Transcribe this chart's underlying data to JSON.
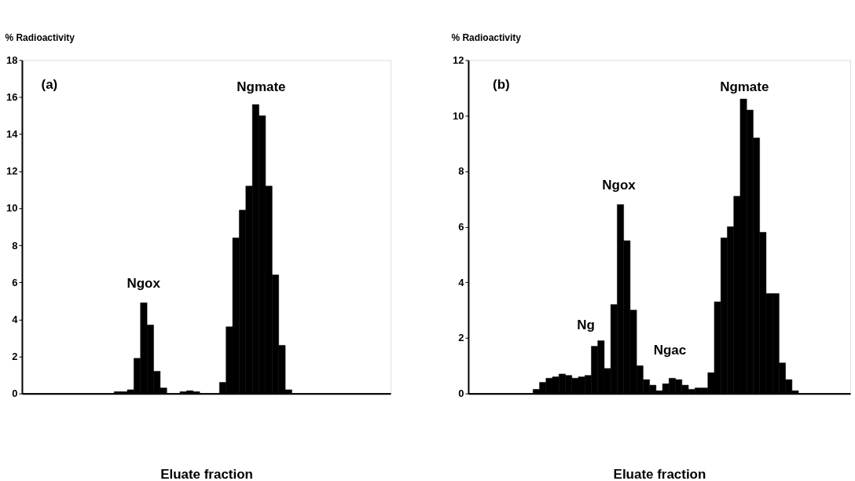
{
  "chart_data": [
    {
      "type": "bar",
      "xlabel": "Eluate fraction",
      "ylabel": "% Radioactivity",
      "annotations": [
        "(a)",
        "Ngox",
        "Ngmate"
      ],
      "categories": [
        null,
        null,
        null,
        null,
        null,
        null,
        null,
        null,
        null,
        null,
        null,
        null,
        null,
        null,
        null,
        null,
        null,
        null,
        null,
        null,
        null,
        null,
        null,
        null,
        null,
        null,
        null,
        null,
        null,
        null,
        null,
        null,
        null,
        null,
        null,
        null,
        null,
        null,
        null,
        null,
        null,
        null,
        null,
        null,
        null,
        null,
        null,
        null,
        null,
        null,
        null,
        null,
        null,
        null,
        null,
        null
      ],
      "values": [
        0,
        0,
        0,
        0,
        0,
        0,
        0,
        0,
        0,
        0,
        0,
        0,
        0,
        0,
        0.1,
        0.1,
        0.2,
        1.9,
        4.9,
        3.7,
        1.2,
        0.3,
        0,
        0,
        0.1,
        0.15,
        0.1,
        0,
        0,
        0,
        0.6,
        3.6,
        8.4,
        9.9,
        11.2,
        15.6,
        15.0,
        11.2,
        6.4,
        2.6,
        0.2,
        0,
        0,
        0,
        0,
        0,
        0,
        0,
        0,
        0,
        0,
        0,
        0,
        0,
        0,
        0
      ],
      "color": "#000000",
      "ylim": [
        0,
        18
      ],
      "yticks": [
        0,
        2,
        4,
        6,
        8,
        10,
        12,
        14,
        16,
        18
      ],
      "grid": false,
      "tick_labels": "y"
    },
    {
      "type": "bar",
      "xlabel": "Eluate fraction",
      "ylabel": "% Radioactivity",
      "annotations": [
        "(b)",
        "Ng",
        "Ngox",
        "Ngac",
        "Ngmate"
      ],
      "categories": [
        null,
        null,
        null,
        null,
        null,
        null,
        null,
        null,
        null,
        null,
        null,
        null,
        null,
        null,
        null,
        null,
        null,
        null,
        null,
        null,
        null,
        null,
        null,
        null,
        null,
        null,
        null,
        null,
        null,
        null,
        null,
        null,
        null,
        null,
        null,
        null,
        null,
        null,
        null,
        null,
        null,
        null,
        null,
        null,
        null,
        null,
        null,
        null,
        null,
        null,
        null,
        null,
        null,
        null,
        null,
        null,
        null,
        null,
        null
      ],
      "values": [
        0,
        0,
        0,
        0,
        0,
        0,
        0,
        0,
        0,
        0,
        0.15,
        0.4,
        0.55,
        0.6,
        0.7,
        0.65,
        0.55,
        0.6,
        0.65,
        1.7,
        1.9,
        0.9,
        3.2,
        6.8,
        5.5,
        3.0,
        1.0,
        0.5,
        0.3,
        0.1,
        0.35,
        0.55,
        0.5,
        0.3,
        0.15,
        0.2,
        0.2,
        0.75,
        3.3,
        5.6,
        6.0,
        7.1,
        10.6,
        10.2,
        9.2,
        5.8,
        3.6,
        3.6,
        1.1,
        0.5,
        0.1,
        0,
        0,
        0,
        0,
        0,
        0,
        0,
        0
      ],
      "color": "#000000",
      "ylim": [
        0,
        12
      ],
      "yticks": [
        0,
        2,
        4,
        6,
        8,
        10,
        12
      ],
      "grid": false,
      "tick_labels": "y"
    }
  ]
}
